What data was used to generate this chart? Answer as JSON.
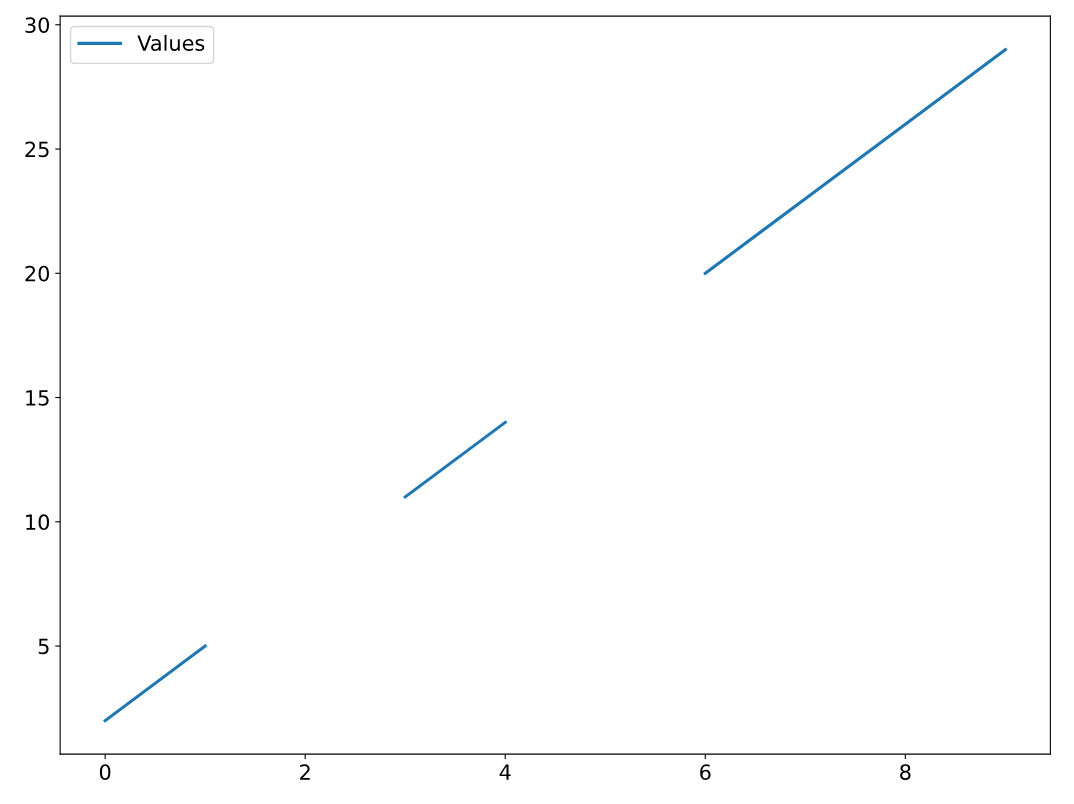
{
  "chart_data": {
    "type": "line",
    "x": [
      0,
      1,
      2,
      3,
      4,
      5,
      6,
      7,
      8,
      9
    ],
    "series": [
      {
        "name": "Values",
        "color": "#1f77b4",
        "values": [
          2,
          5,
          null,
          11,
          14,
          null,
          20,
          23,
          26,
          29
        ]
      }
    ],
    "xlim": [
      -0.45,
      9.45
    ],
    "xticks": [
      0,
      2,
      4,
      6,
      8
    ],
    "ylim": [
      0.65,
      30.35
    ],
    "yticks": [
      5,
      10,
      15,
      20,
      25,
      30
    ],
    "grid": false,
    "legend": "top left",
    "marker": "none",
    "line_style": "solid"
  }
}
